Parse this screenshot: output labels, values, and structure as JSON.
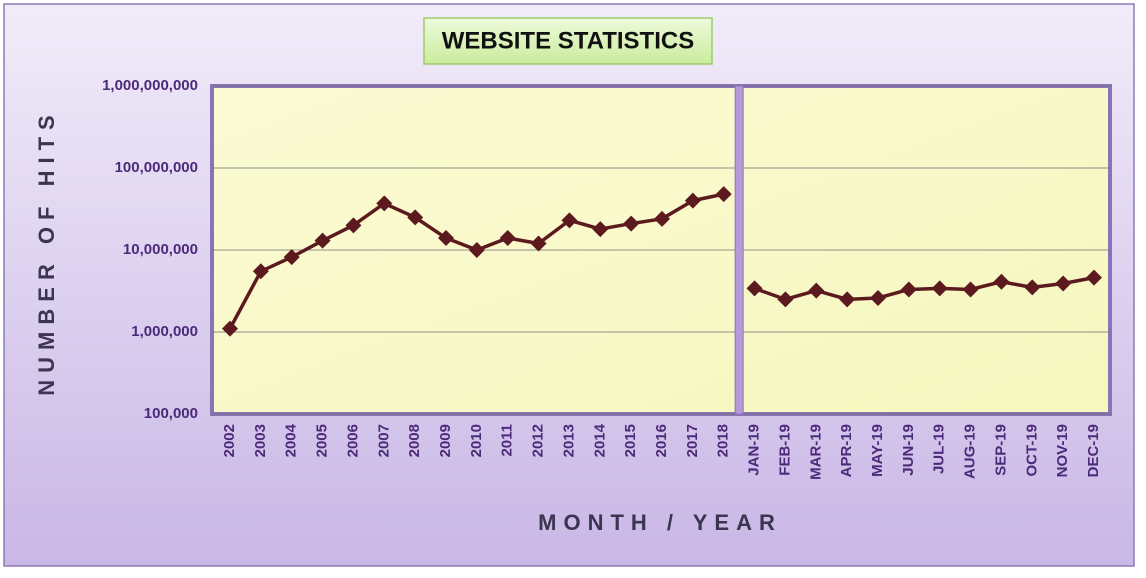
{
  "chart_data": {
    "type": "line",
    "title": "WEBSITE STATISTICS",
    "x_label": "MONTH / YEAR",
    "y_label": "NUMBER OF HITS",
    "log_scale": true,
    "grid": true,
    "color": "#5c1a1e",
    "categories": [
      "2002",
      "2003",
      "2004",
      "2005",
      "2006",
      "2007",
      "2008",
      "2009",
      "2010",
      "2011",
      "2012",
      "2013",
      "2014",
      "2015",
      "2016",
      "2017",
      "2018",
      null,
      "JAN-19",
      "FEB-19",
      "MAR-19",
      "APR-19",
      "MAY-19",
      "JUN-19",
      "JUL-19",
      "AUG-19",
      "SEP-19",
      "OCT-19",
      "NOV-19",
      "DEC-19"
    ],
    "values": [
      1100000,
      5500000,
      8200000,
      13000000,
      20000000,
      37000000,
      25000000,
      14000000,
      10000000,
      14000000,
      12000000,
      23000000,
      18000000,
      21000000,
      24000000,
      40000000,
      48000000,
      null,
      3400000,
      2500000,
      3200000,
      2500000,
      2600000,
      3300000,
      3400000,
      3300000,
      4100000,
      3500000,
      3900000,
      4600000
    ],
    "ylim": [
      100000,
      1000000000
    ],
    "yticks": [
      {
        "value": 100000,
        "label": "100,000"
      },
      {
        "value": 1000000,
        "label": "1,000,000"
      },
      {
        "value": 10000000,
        "label": "10,000,000"
      },
      {
        "value": 100000000,
        "label": "100,000,000"
      },
      {
        "value": 1000000000,
        "label": "1,000,000,000"
      }
    ]
  }
}
